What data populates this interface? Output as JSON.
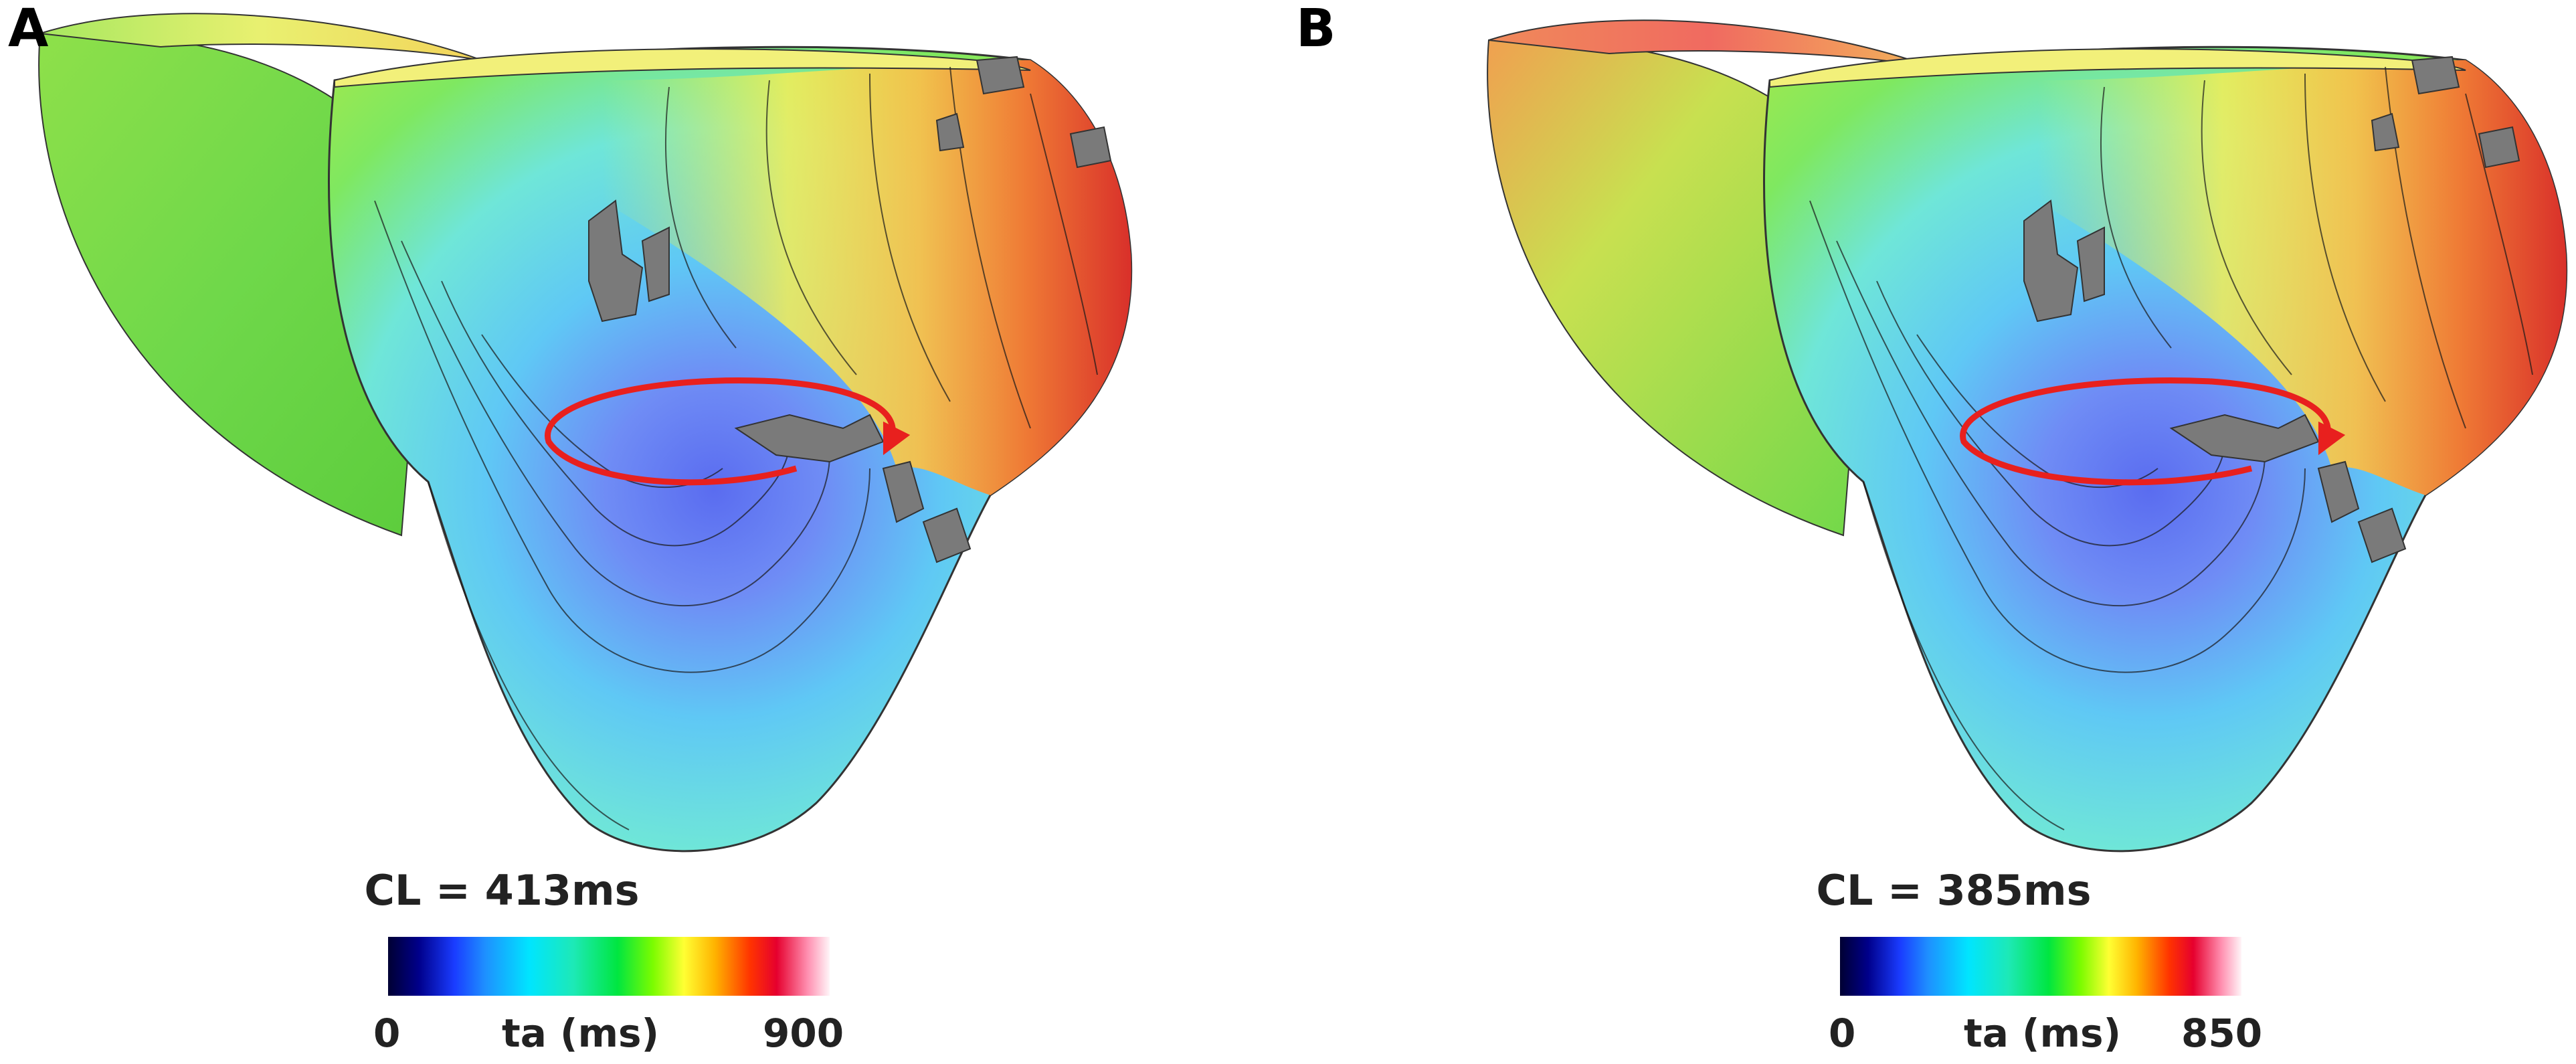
{
  "panels": [
    {
      "letter": "A",
      "cycle_length": "CL = 413ms",
      "colorbar": {
        "min": "0",
        "max": "900",
        "unit_label": "ta (ms)"
      }
    },
    {
      "letter": "B",
      "cycle_length": "CL = 385ms",
      "colorbar": {
        "min": "0",
        "max": "850",
        "unit_label": "ta (ms)"
      }
    }
  ],
  "colors": {
    "reentry_arrow": "#e8201e",
    "scar": "#7a7a7a",
    "isochrone": "#1a1a1a"
  }
}
